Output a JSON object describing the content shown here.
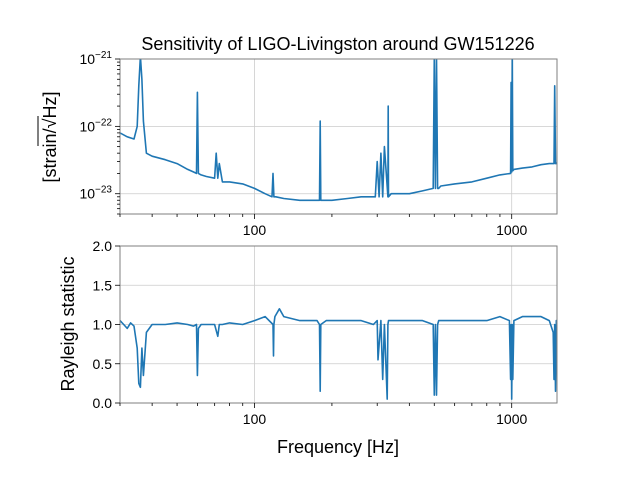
{
  "chart_data": [
    {
      "type": "line",
      "title": "Sensitivity of LIGO-Livingston around GW151226",
      "xlabel": "",
      "ylabel": "[strain/√Hz]",
      "xscale": "log",
      "yscale": "log",
      "xlim": [
        30,
        1500
      ],
      "ylim": [
        5e-24,
        1e-21
      ],
      "xticks": [
        {
          "value": 100,
          "label": "100"
        },
        {
          "value": 1000,
          "label": "1000"
        }
      ],
      "yticks": [
        {
          "value": 1e-23,
          "base": "10",
          "exp": "−23"
        },
        {
          "value": 1e-22,
          "base": "10",
          "exp": "−22"
        },
        {
          "value": 1e-21,
          "base": "10",
          "exp": "−21"
        }
      ],
      "grid": true,
      "color": "#1f77b4",
      "x": [
        30,
        32,
        34,
        35,
        35.5,
        36,
        36.5,
        37,
        38,
        40,
        45,
        50,
        55,
        58,
        59.5,
        60,
        60.5,
        62,
        65,
        70,
        71,
        72,
        73,
        75,
        80,
        90,
        100,
        110,
        117,
        118,
        119,
        121,
        130,
        150,
        170,
        179,
        180,
        181,
        190,
        200,
        230,
        260,
        290,
        295,
        300,
        305,
        310,
        315,
        320,
        330,
        331,
        332,
        340,
        400,
        450,
        495,
        500,
        505,
        510,
        515,
        520,
        530,
        600,
        700,
        800,
        900,
        990,
        995,
        1000,
        1005,
        1010,
        1020,
        1100,
        1200,
        1300,
        1400,
        1460,
        1470,
        1480,
        1490,
        1500
      ],
      "y": [
        8e-23,
        7e-23,
        6.5e-23,
        1e-22,
        4e-22,
        1.1e-21,
        5e-22,
        1.2e-22,
        4e-23,
        3.6e-23,
        3.2e-23,
        2.8e-23,
        2.3e-23,
        2.1e-23,
        2e-23,
        3.2e-22,
        2e-23,
        1.9e-23,
        1.8e-23,
        1.7e-23,
        4e-23,
        1.7e-23,
        2.8e-23,
        1.5e-23,
        1.5e-23,
        1.4e-23,
        1.2e-23,
        1e-23,
        9e-24,
        2e-23,
        9e-24,
        9e-24,
        8.5e-24,
        8e-24,
        8e-24,
        8e-24,
        1.2e-22,
        8e-24,
        8e-24,
        8e-24,
        8.5e-24,
        9e-24,
        9e-24,
        9e-24,
        3e-23,
        9e-24,
        4e-23,
        9e-24,
        5e-23,
        9e-24,
        2e-22,
        9e-24,
        1e-23,
        1e-23,
        1.1e-23,
        1.2e-23,
        1.1e-21,
        1.2e-23,
        1.1e-21,
        1.2e-23,
        1.2e-23,
        1.3e-23,
        1.4e-23,
        1.5e-23,
        1.7e-23,
        1.9e-23,
        2e-23,
        4.5e-22,
        2.1e-23,
        1.1e-21,
        2.2e-23,
        2.3e-23,
        2.4e-23,
        2.5e-23,
        2.7e-23,
        2.8e-23,
        2.8e-23,
        4e-22,
        2.8e-23,
        2.8e-23,
        2.9e-23
      ]
    },
    {
      "type": "line",
      "title": "",
      "xlabel": "Frequency [Hz]",
      "ylabel": "Rayleigh statistic",
      "xscale": "log",
      "yscale": "linear",
      "xlim": [
        30,
        1500
      ],
      "ylim": [
        0.0,
        2.0
      ],
      "xticks": [
        {
          "value": 100,
          "label": "100"
        },
        {
          "value": 1000,
          "label": "1000"
        }
      ],
      "yticks": [
        {
          "value": 0.0,
          "label": "0.0"
        },
        {
          "value": 0.5,
          "label": "0.5"
        },
        {
          "value": 1.0,
          "label": "1.0"
        },
        {
          "value": 1.5,
          "label": "1.5"
        },
        {
          "value": 2.0,
          "label": "2.0"
        }
      ],
      "grid": true,
      "color": "#1f77b4",
      "x": [
        30,
        31,
        32,
        33,
        34,
        35,
        35.5,
        36,
        36.5,
        37,
        38,
        40,
        45,
        50,
        55,
        58,
        59.5,
        60,
        60.5,
        62,
        70,
        72,
        73,
        75,
        80,
        90,
        100,
        110,
        118,
        118.5,
        119,
        120,
        125,
        130,
        150,
        175,
        179,
        180,
        181,
        190,
        230,
        260,
        290,
        300,
        302,
        310,
        315,
        320,
        328,
        330,
        332,
        340,
        400,
        450,
        495,
        500,
        505,
        510,
        515,
        520,
        600,
        700,
        800,
        900,
        980,
        990,
        995,
        1000,
        1005,
        1010,
        1020,
        1100,
        1200,
        1300,
        1400,
        1450,
        1460,
        1470,
        1480,
        1490,
        1500
      ],
      "y": [
        1.05,
        1.0,
        0.95,
        1.02,
        0.98,
        0.7,
        0.25,
        0.2,
        0.7,
        0.35,
        0.9,
        1.0,
        1.0,
        1.02,
        1.0,
        0.98,
        1.0,
        0.35,
        0.95,
        1.0,
        1.0,
        0.85,
        1.0,
        1.0,
        1.02,
        1.0,
        1.05,
        1.1,
        1.0,
        0.6,
        1.0,
        1.1,
        1.2,
        1.1,
        1.05,
        1.05,
        1.0,
        0.15,
        1.0,
        1.05,
        1.05,
        1.05,
        1.0,
        1.05,
        0.55,
        1.05,
        0.3,
        1.0,
        0.05,
        1.0,
        1.05,
        1.05,
        1.05,
        1.05,
        1.0,
        0.1,
        1.0,
        0.1,
        1.0,
        1.05,
        1.05,
        1.05,
        1.05,
        1.1,
        1.05,
        0.3,
        1.0,
        0.05,
        1.0,
        0.3,
        1.05,
        1.1,
        1.1,
        1.1,
        1.05,
        0.9,
        0.3,
        1.0,
        0.15,
        1.05,
        1.0
      ]
    }
  ]
}
